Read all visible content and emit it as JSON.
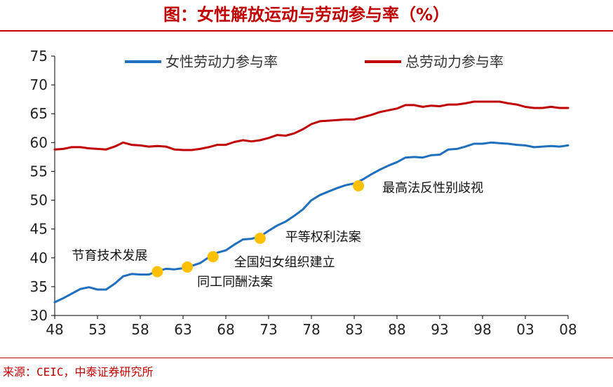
{
  "title": "图：女性解放运动与劳动参与率（%）",
  "source": "来源：CEIC，中泰证券研究所",
  "colors": {
    "female": "#1f6fbf",
    "total": "#c00000",
    "marker": "#ffc000",
    "title": "#c00000"
  },
  "chart_data": {
    "type": "line",
    "ylim": [
      30,
      75
    ],
    "yticks": [
      30,
      35,
      40,
      45,
      50,
      55,
      60,
      65,
      70,
      75
    ],
    "xlim": [
      1948,
      2008
    ],
    "xticks": [
      {
        "v": 1948,
        "label": "48"
      },
      {
        "v": 1953,
        "label": "53"
      },
      {
        "v": 1958,
        "label": "58"
      },
      {
        "v": 1963,
        "label": "63"
      },
      {
        "v": 1968,
        "label": "68"
      },
      {
        "v": 1973,
        "label": "73"
      },
      {
        "v": 1978,
        "label": "78"
      },
      {
        "v": 1983,
        "label": "83"
      },
      {
        "v": 1988,
        "label": "88"
      },
      {
        "v": 1993,
        "label": "93"
      },
      {
        "v": 1998,
        "label": "98"
      },
      {
        "v": 2003,
        "label": "03"
      },
      {
        "v": 2008,
        "label": "08"
      }
    ],
    "legend": "top",
    "series": [
      {
        "name": "女性劳动力参与率",
        "x": [
          1948,
          1949,
          1950,
          1951,
          1952,
          1953,
          1954,
          1955,
          1956,
          1957,
          1958,
          1959,
          1960,
          1961,
          1962,
          1963,
          1964,
          1965,
          1966,
          1967,
          1968,
          1969,
          1970,
          1971,
          1972,
          1973,
          1974,
          1975,
          1976,
          1977,
          1978,
          1979,
          1980,
          1981,
          1982,
          1983,
          1984,
          1985,
          1986,
          1987,
          1988,
          1989,
          1990,
          1991,
          1992,
          1993,
          1994,
          1995,
          1996,
          1997,
          1998,
          1999,
          2000,
          2001,
          2002,
          2003,
          2004,
          2005,
          2006,
          2007,
          2008
        ],
        "values": [
          32.3,
          33.0,
          33.8,
          34.6,
          34.9,
          34.5,
          34.5,
          35.5,
          36.8,
          37.2,
          37.1,
          37.1,
          37.7,
          38.1,
          38.0,
          38.2,
          38.6,
          39.1,
          40.1,
          40.9,
          41.3,
          42.3,
          43.2,
          43.3,
          43.7,
          44.7,
          45.6,
          46.3,
          47.3,
          48.4,
          50.0,
          50.9,
          51.5,
          52.1,
          52.6,
          52.9,
          53.6,
          54.5,
          55.3,
          56.0,
          56.6,
          57.4,
          57.5,
          57.4,
          57.8,
          57.9,
          58.8,
          58.9,
          59.3,
          59.8,
          59.8,
          60.0,
          59.9,
          59.8,
          59.6,
          59.5,
          59.2,
          59.3,
          59.4,
          59.3,
          59.5
        ]
      },
      {
        "name": "总劳动力参与率",
        "x": [
          1948,
          1949,
          1950,
          1951,
          1952,
          1953,
          1954,
          1955,
          1956,
          1957,
          1958,
          1959,
          1960,
          1961,
          1962,
          1963,
          1964,
          1965,
          1966,
          1967,
          1968,
          1969,
          1970,
          1971,
          1972,
          1973,
          1974,
          1975,
          1976,
          1977,
          1978,
          1979,
          1980,
          1981,
          1982,
          1983,
          1984,
          1985,
          1986,
          1987,
          1988,
          1989,
          1990,
          1991,
          1992,
          1993,
          1994,
          1995,
          1996,
          1997,
          1998,
          1999,
          2000,
          2001,
          2002,
          2003,
          2004,
          2005,
          2006,
          2007,
          2008
        ],
        "values": [
          58.8,
          58.9,
          59.2,
          59.2,
          59.0,
          58.9,
          58.8,
          59.3,
          60.0,
          59.6,
          59.5,
          59.3,
          59.4,
          59.3,
          58.8,
          58.7,
          58.7,
          58.9,
          59.2,
          59.6,
          59.6,
          60.1,
          60.4,
          60.2,
          60.4,
          60.8,
          61.3,
          61.2,
          61.6,
          62.3,
          63.2,
          63.7,
          63.8,
          63.9,
          64.0,
          64.0,
          64.4,
          64.8,
          65.3,
          65.6,
          65.9,
          66.5,
          66.5,
          66.2,
          66.4,
          66.3,
          66.6,
          66.6,
          66.8,
          67.1,
          67.1,
          67.1,
          67.1,
          66.8,
          66.6,
          66.2,
          66.0,
          66.0,
          66.2,
          66.0,
          66.0
        ]
      }
    ],
    "events": [
      {
        "label": "节育技术发展",
        "x": 1960.0,
        "y": 37.6,
        "anchor": "above-left"
      },
      {
        "label": "同工同酬法案",
        "x": 1963.5,
        "y": 38.4,
        "anchor": "below-right"
      },
      {
        "label": "全国妇女组织建立",
        "x": 1966.5,
        "y": 40.2,
        "anchor": "right"
      },
      {
        "label": "平等权利法案",
        "x": 1972.0,
        "y": 43.4,
        "anchor": "right"
      },
      {
        "label": "最高法反性别歧视",
        "x": 1983.5,
        "y": 52.5,
        "anchor": "right"
      }
    ]
  }
}
